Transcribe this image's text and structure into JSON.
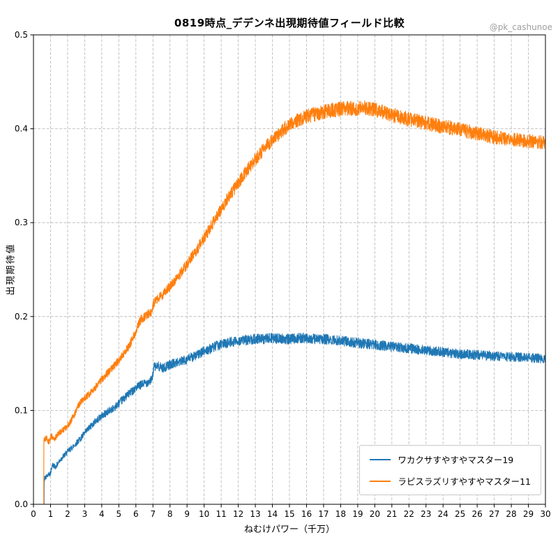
{
  "chart": {
    "watermark": "@pk_cashunoe"
  },
  "chart_data": {
    "type": "line",
    "title": "0819時点_デデンネ出現期待値フィールド比較",
    "xlabel": "ねむけパワー（千万）",
    "ylabel": "出現期待値",
    "xlim": [
      0,
      30
    ],
    "ylim": [
      0,
      0.5
    ],
    "x_ticks": [
      0,
      1,
      2,
      3,
      4,
      5,
      6,
      7,
      8,
      9,
      10,
      11,
      12,
      13,
      14,
      15,
      16,
      17,
      18,
      19,
      20,
      21,
      22,
      23,
      24,
      25,
      26,
      27,
      28,
      29,
      30
    ],
    "y_ticks": [
      0.0,
      0.1,
      0.2,
      0.3,
      0.4,
      0.5
    ],
    "grid": true,
    "grid_style": "dashed",
    "grid_color": "#b3b3b3",
    "legend_position": "lower right",
    "seed": 42,
    "sample_step": 0.01,
    "series": [
      {
        "name": "ワカクサすやすやマスター19",
        "color": "#1f77b4",
        "noise_base": 0.002,
        "noise_scale": 0.02,
        "keypoints": [
          [
            0,
            0
          ],
          [
            0.62,
            0
          ],
          [
            0.63,
            0.027
          ],
          [
            0.8,
            0.03
          ],
          [
            1.0,
            0.033
          ],
          [
            1.1,
            0.042
          ],
          [
            1.3,
            0.04
          ],
          [
            1.6,
            0.048
          ],
          [
            2.0,
            0.056
          ],
          [
            2.4,
            0.063
          ],
          [
            2.8,
            0.071
          ],
          [
            3.2,
            0.08
          ],
          [
            3.6,
            0.088
          ],
          [
            4.0,
            0.094
          ],
          [
            4.4,
            0.099
          ],
          [
            4.8,
            0.104
          ],
          [
            5.2,
            0.111
          ],
          [
            5.6,
            0.118
          ],
          [
            6.0,
            0.124
          ],
          [
            6.4,
            0.128
          ],
          [
            6.8,
            0.131
          ],
          [
            6.95,
            0.133
          ],
          [
            7.05,
            0.146
          ],
          [
            7.3,
            0.147
          ],
          [
            7.6,
            0.145
          ],
          [
            8.0,
            0.149
          ],
          [
            8.4,
            0.151
          ],
          [
            8.8,
            0.153
          ],
          [
            9.2,
            0.156
          ],
          [
            9.6,
            0.159
          ],
          [
            10.0,
            0.163
          ],
          [
            10.4,
            0.166
          ],
          [
            10.8,
            0.169
          ],
          [
            11.2,
            0.171
          ],
          [
            11.6,
            0.173
          ],
          [
            12.0,
            0.174
          ],
          [
            12.5,
            0.175
          ],
          [
            13.0,
            0.176
          ],
          [
            13.5,
            0.176
          ],
          [
            14.0,
            0.177
          ],
          [
            14.5,
            0.176
          ],
          [
            15.0,
            0.176
          ],
          [
            15.5,
            0.177
          ],
          [
            16.0,
            0.177
          ],
          [
            16.5,
            0.176
          ],
          [
            17.0,
            0.176
          ],
          [
            17.5,
            0.175
          ],
          [
            18.0,
            0.174
          ],
          [
            18.5,
            0.173
          ],
          [
            19.0,
            0.172
          ],
          [
            19.5,
            0.171
          ],
          [
            20.0,
            0.17
          ],
          [
            21,
            0.168
          ],
          [
            22,
            0.166
          ],
          [
            23,
            0.164
          ],
          [
            24,
            0.162
          ],
          [
            25,
            0.16
          ],
          [
            26,
            0.159
          ],
          [
            27,
            0.158
          ],
          [
            28,
            0.157
          ],
          [
            29,
            0.156
          ],
          [
            30,
            0.155
          ]
        ]
      },
      {
        "name": "ラピスラズリすやすやマスター11",
        "color": "#ff7f0e",
        "noise_base": 0.002,
        "noise_scale": 0.014,
        "keypoints": [
          [
            0,
            0
          ],
          [
            0.6,
            0
          ],
          [
            0.61,
            0.068
          ],
          [
            0.75,
            0.071
          ],
          [
            0.9,
            0.066
          ],
          [
            1.05,
            0.073
          ],
          [
            1.2,
            0.069
          ],
          [
            1.5,
            0.076
          ],
          [
            1.8,
            0.08
          ],
          [
            2.1,
            0.086
          ],
          [
            2.4,
            0.096
          ],
          [
            2.6,
            0.104
          ],
          [
            2.8,
            0.11
          ],
          [
            3.0,
            0.113
          ],
          [
            3.3,
            0.118
          ],
          [
            3.6,
            0.124
          ],
          [
            3.9,
            0.131
          ],
          [
            4.2,
            0.137
          ],
          [
            4.5,
            0.143
          ],
          [
            4.8,
            0.149
          ],
          [
            5.1,
            0.156
          ],
          [
            5.4,
            0.163
          ],
          [
            5.7,
            0.172
          ],
          [
            5.9,
            0.18
          ],
          [
            6.1,
            0.19
          ],
          [
            6.3,
            0.197
          ],
          [
            6.6,
            0.201
          ],
          [
            6.9,
            0.205
          ],
          [
            7.05,
            0.214
          ],
          [
            7.2,
            0.218
          ],
          [
            7.5,
            0.222
          ],
          [
            7.8,
            0.228
          ],
          [
            8.1,
            0.234
          ],
          [
            8.4,
            0.241
          ],
          [
            8.7,
            0.248
          ],
          [
            9.0,
            0.256
          ],
          [
            9.3,
            0.264
          ],
          [
            9.6,
            0.272
          ],
          [
            9.9,
            0.281
          ],
          [
            10.2,
            0.29
          ],
          [
            10.5,
            0.299
          ],
          [
            10.8,
            0.308
          ],
          [
            11.1,
            0.317
          ],
          [
            11.4,
            0.326
          ],
          [
            11.7,
            0.334
          ],
          [
            12.0,
            0.342
          ],
          [
            12.3,
            0.35
          ],
          [
            12.6,
            0.358
          ],
          [
            12.9,
            0.365
          ],
          [
            13.2,
            0.372
          ],
          [
            13.5,
            0.378
          ],
          [
            13.8,
            0.384
          ],
          [
            14.1,
            0.39
          ],
          [
            14.4,
            0.395
          ],
          [
            14.7,
            0.4
          ],
          [
            15.0,
            0.404
          ],
          [
            15.3,
            0.407
          ],
          [
            15.6,
            0.41
          ],
          [
            16.0,
            0.413
          ],
          [
            16.4,
            0.415
          ],
          [
            16.8,
            0.417
          ],
          [
            17.2,
            0.419
          ],
          [
            17.6,
            0.42
          ],
          [
            18.0,
            0.421
          ],
          [
            18.5,
            0.422
          ],
          [
            19.0,
            0.421
          ],
          [
            19.3,
            0.423
          ],
          [
            19.6,
            0.421
          ],
          [
            20.0,
            0.42
          ],
          [
            20.4,
            0.418
          ],
          [
            20.8,
            0.416
          ],
          [
            21.2,
            0.414
          ],
          [
            21.6,
            0.412
          ],
          [
            22.0,
            0.41
          ],
          [
            22.5,
            0.408
          ],
          [
            23.0,
            0.406
          ],
          [
            23.5,
            0.404
          ],
          [
            24.0,
            0.402
          ],
          [
            24.5,
            0.401
          ],
          [
            25.0,
            0.399
          ],
          [
            25.5,
            0.397
          ],
          [
            26.0,
            0.395
          ],
          [
            26.5,
            0.393
          ],
          [
            27.0,
            0.391
          ],
          [
            27.5,
            0.39
          ],
          [
            28.0,
            0.389
          ],
          [
            28.5,
            0.388
          ],
          [
            29.0,
            0.387
          ],
          [
            29.5,
            0.386
          ],
          [
            30.0,
            0.385
          ]
        ]
      }
    ]
  }
}
